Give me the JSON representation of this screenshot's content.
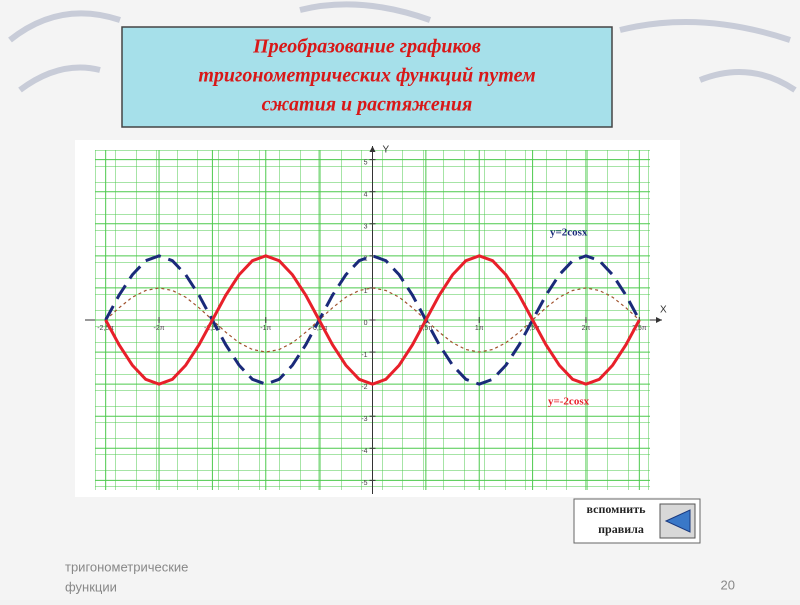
{
  "slide": {
    "title": [
      "Преобразование графиков",
      "тригонометрических функций путем",
      "сжатия и растяжения"
    ],
    "button": [
      "вспомнить",
      "правила"
    ],
    "footer": [
      "тригонометрические",
      "функции"
    ],
    "page_number": 20
  },
  "chart_data": {
    "type": "line",
    "x_label": "X",
    "y_label": "Y",
    "x": [
      -2.5,
      -2.375,
      -2.25,
      -2.125,
      -2,
      -1.875,
      -1.75,
      -1.625,
      -1.5,
      -1.375,
      -1.25,
      -1.125,
      -1,
      -0.875,
      -0.75,
      -0.625,
      -0.5,
      -0.375,
      -0.25,
      -0.125,
      0,
      0.125,
      0.25,
      0.375,
      0.5,
      0.625,
      0.75,
      0.875,
      1,
      1.125,
      1.25,
      1.375,
      1.5,
      1.625,
      1.75,
      1.875,
      2,
      2.125,
      2.25,
      2.375,
      2.5
    ],
    "series": [
      {
        "color": "#a0522d",
        "dash": "3,3",
        "values": [
          0,
          0.38,
          0.71,
          0.92,
          1,
          0.92,
          0.71,
          0.38,
          0,
          -0.38,
          -0.71,
          -0.92,
          -1,
          -0.92,
          -0.71,
          -0.38,
          0,
          0.38,
          0.71,
          0.92,
          1,
          0.92,
          0.71,
          0.38,
          0,
          -0.38,
          -0.71,
          -0.92,
          -1,
          -0.92,
          -0.71,
          -0.38,
          0,
          0.38,
          0.71,
          0.92,
          1,
          0.92,
          0.71,
          0.38,
          0
        ]
      },
      {
        "name": "y=2cosx",
        "color": "#1a2a7a",
        "dash": "16,8",
        "values": [
          0,
          0.77,
          1.41,
          1.85,
          2,
          1.85,
          1.41,
          0.77,
          0,
          -0.77,
          -1.41,
          -1.85,
          -2,
          -1.85,
          -1.41,
          -0.77,
          0,
          0.77,
          1.41,
          1.85,
          2,
          1.85,
          1.41,
          0.77,
          0,
          -0.77,
          -1.41,
          -1.85,
          -2,
          -1.85,
          -1.41,
          -0.77,
          0,
          0.77,
          1.41,
          1.85,
          2,
          1.85,
          1.41,
          0.77,
          0
        ]
      },
      {
        "name": "y=-2cosx",
        "color": "#e8202a",
        "dash": "none",
        "values": [
          0,
          -0.77,
          -1.41,
          -1.85,
          -2,
          -1.85,
          -1.41,
          -0.77,
          0,
          0.77,
          1.41,
          1.85,
          2,
          1.85,
          1.41,
          0.77,
          0,
          -0.77,
          -1.41,
          -1.85,
          -2,
          -1.85,
          -1.41,
          -0.77,
          0,
          0.77,
          1.41,
          1.85,
          2,
          1.85,
          1.41,
          0.77,
          0,
          -0.77,
          -1.41,
          -1.85,
          -2,
          -1.85,
          -1.41,
          -0.77,
          0
        ]
      }
    ],
    "xlim": [
      -2.6,
      2.6
    ],
    "ylim": [
      -5.3,
      5.3
    ],
    "xticks": [
      {
        "value": -2.5,
        "label": "-2,5π"
      },
      {
        "value": -2,
        "label": "-2π"
      },
      {
        "value": -1.5,
        "label": "-1,5π"
      },
      {
        "value": -1,
        "label": "-1π"
      },
      {
        "value": -0.5,
        "label": "-0,5π"
      },
      {
        "value": 0.5,
        "label": "0,5π"
      },
      {
        "value": 1,
        "label": "1π"
      },
      {
        "value": 1.5,
        "label": "1,5π"
      },
      {
        "value": 2,
        "label": "2π"
      },
      {
        "value": 2.5,
        "label": "2,5π"
      }
    ],
    "yticks": [
      -5,
      -4,
      -3,
      -2,
      -1,
      0,
      1,
      2,
      3,
      4,
      5
    ],
    "grid": true
  }
}
